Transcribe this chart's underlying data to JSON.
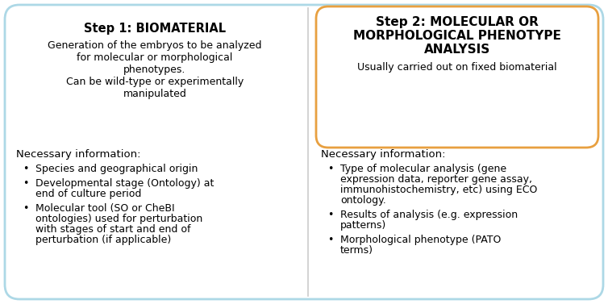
{
  "background_color": "#ffffff",
  "outer_border_color": "#ADD8E6",
  "box2_border_color": "#E8A040",
  "box1_title": "Step 1: BIOMATERIAL",
  "box1_subtitle_lines": [
    "Generation of the embryos to be analyzed",
    "for molecular or morphological",
    "phenotypes.",
    "Can be wild-type or experimentally",
    "manipulated"
  ],
  "box2_title_lines": [
    "Step 2: MOLECULAR OR",
    "MORPHOLOGICAL PHENOTYPE",
    "ANALYSIS"
  ],
  "box2_subtitle": "Usually carried out on fixed biomaterial",
  "sec1_header": "Necessary information:",
  "sec1_bullets": [
    [
      "Species and geographical origin"
    ],
    [
      "Developmental stage (Ontology) at",
      "end of culture period"
    ],
    [
      "Molecular tool (SO or CheBI",
      "ontologies) used for perturbation",
      "with stages of start and end of",
      "perturbation (if applicable)"
    ]
  ],
  "sec2_header": "Necessary information:",
  "sec2_bullets": [
    [
      "Type of molecular analysis (gene",
      "expression data, reporter gene assay,",
      "immunohistochemistry, etc) using ECO",
      "ontology."
    ],
    [
      "Results of analysis (e.g. expression",
      "patterns)"
    ],
    [
      "Morphological phenotype (PATO",
      "terms)"
    ]
  ],
  "divider_color": "#cccccc",
  "text_color": "#000000",
  "title_fontsize": 10.5,
  "body_fontsize": 9.0,
  "header_fontsize": 9.5
}
